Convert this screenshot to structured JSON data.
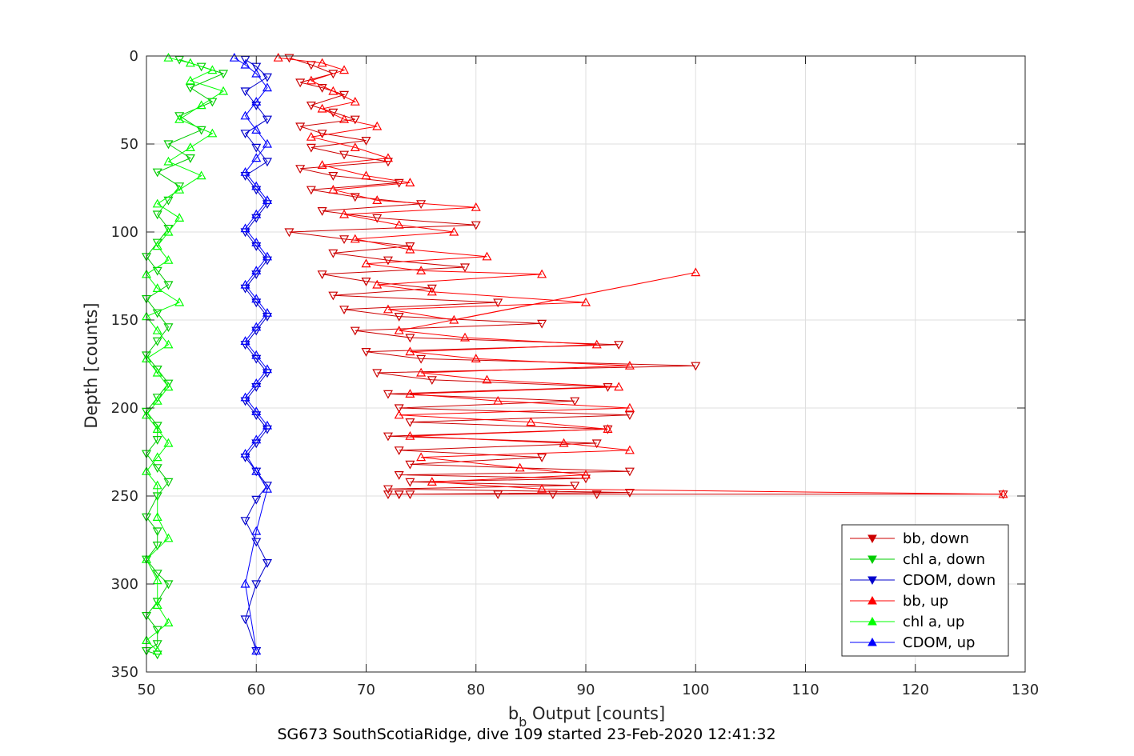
{
  "chart_data": {
    "type": "scatter",
    "title": "",
    "caption": "SG673 SouthScotiaRidge, dive 109 started 23-Feb-2020 12:41:32",
    "xlabel_main": "b",
    "xlabel_sub": "b",
    "xlabel_rest": " Output [counts]",
    "ylabel": "Depth [counts]",
    "xlim": [
      50,
      130
    ],
    "ylim": [
      0,
      350
    ],
    "y_reversed": true,
    "grid": true,
    "legend_position": "bottom-right",
    "xticks": [
      "50",
      "60",
      "70",
      "80",
      "90",
      "100",
      "110",
      "120",
      "130"
    ],
    "yticks": [
      "0",
      "50",
      "100",
      "150",
      "200",
      "250",
      "300",
      "350"
    ],
    "series": [
      {
        "name": "bb, down",
        "color": "#cc0000",
        "marker": "triangle-down",
        "connected": true,
        "x": [
          63,
          65,
          67,
          64,
          66,
          68,
          65,
          67,
          69,
          64,
          66,
          70,
          65,
          68,
          72,
          64,
          67,
          73,
          65,
          69,
          75,
          66,
          71,
          80,
          63,
          68,
          74,
          67,
          72,
          79,
          66,
          70,
          76,
          67,
          82,
          68,
          73,
          86,
          69,
          74,
          93,
          70,
          75,
          100,
          71,
          76,
          92,
          72,
          89,
          73,
          94,
          74,
          92,
          72,
          91,
          73,
          86,
          74,
          94,
          73,
          90,
          74,
          89,
          72,
          94,
          73,
          87,
          72,
          82,
          73,
          91,
          74,
          128
        ],
        "y": [
          1,
          5,
          10,
          15,
          18,
          22,
          28,
          32,
          36,
          40,
          44,
          48,
          52,
          56,
          60,
          64,
          68,
          72,
          76,
          80,
          84,
          88,
          92,
          96,
          100,
          104,
          108,
          112,
          116,
          120,
          124,
          128,
          132,
          136,
          140,
          144,
          148,
          152,
          156,
          160,
          164,
          168,
          172,
          176,
          180,
          184,
          188,
          192,
          196,
          200,
          204,
          208,
          212,
          216,
          220,
          224,
          228,
          232,
          236,
          238,
          240,
          242,
          244,
          246,
          248,
          249,
          249,
          249,
          249,
          249,
          249,
          249,
          249
        ]
      },
      {
        "name": "chl a, down",
        "color": "#00cc00",
        "marker": "triangle-down",
        "connected": true,
        "x": [
          53,
          55,
          57,
          54,
          56,
          53,
          55,
          52,
          54,
          51,
          53,
          52,
          51,
          52,
          51,
          50,
          51,
          52,
          50,
          51,
          52,
          51,
          50,
          51,
          52,
          51,
          50,
          51,
          51,
          50,
          51,
          52,
          51,
          50,
          51,
          51,
          50,
          51,
          52,
          51,
          50,
          51,
          51,
          50,
          51
        ],
        "y": [
          2,
          6,
          10,
          18,
          26,
          34,
          42,
          50,
          58,
          66,
          74,
          82,
          90,
          98,
          106,
          114,
          122,
          130,
          138,
          146,
          154,
          162,
          170,
          178,
          186,
          194,
          202,
          210,
          218,
          226,
          234,
          242,
          250,
          262,
          270,
          278,
          286,
          294,
          300,
          310,
          318,
          326,
          334,
          338,
          340
        ]
      },
      {
        "name": "CDOM, down",
        "color": "#0000cc",
        "marker": "triangle-down",
        "connected": true,
        "x": [
          59,
          60,
          61,
          59,
          60,
          61,
          59,
          60,
          61,
          59,
          60,
          61,
          60,
          59,
          60,
          61,
          60,
          59,
          60,
          61,
          60,
          59,
          60,
          61,
          60,
          59,
          60,
          61,
          60,
          59,
          60,
          61,
          60,
          59,
          60,
          61,
          60,
          59,
          60
        ],
        "y": [
          2,
          6,
          12,
          20,
          28,
          36,
          44,
          52,
          60,
          68,
          76,
          84,
          92,
          100,
          108,
          116,
          124,
          132,
          140,
          148,
          156,
          164,
          172,
          180,
          188,
          196,
          204,
          212,
          220,
          228,
          236,
          244,
          252,
          264,
          276,
          288,
          300,
          320,
          338
        ]
      },
      {
        "name": "bb, up",
        "color": "#ff0000",
        "marker": "triangle-up",
        "connected": true,
        "x": [
          62,
          66,
          68,
          65,
          67,
          69,
          66,
          68,
          71,
          65,
          69,
          72,
          66,
          70,
          74,
          67,
          71,
          80,
          68,
          73,
          78,
          69,
          74,
          81,
          70,
          75,
          86,
          71,
          76,
          90,
          72,
          78,
          100,
          73,
          79,
          91,
          74,
          80,
          94,
          75,
          81,
          93,
          74,
          82,
          94,
          73,
          85,
          92,
          74,
          88,
          94,
          75,
          84,
          90,
          76,
          86,
          128
        ],
        "y": [
          1,
          4,
          8,
          14,
          20,
          26,
          30,
          36,
          40,
          46,
          52,
          58,
          62,
          68,
          72,
          76,
          82,
          86,
          90,
          96,
          100,
          104,
          110,
          114,
          118,
          122,
          124,
          130,
          134,
          140,
          144,
          150,
          123,
          156,
          160,
          164,
          168,
          172,
          176,
          180,
          184,
          188,
          192,
          196,
          200,
          204,
          208,
          212,
          216,
          220,
          224,
          228,
          234,
          238,
          242,
          246,
          249
        ]
      },
      {
        "name": "chl a, up",
        "color": "#00ff00",
        "marker": "triangle-up",
        "connected": true,
        "x": [
          52,
          54,
          56,
          54,
          57,
          55,
          53,
          56,
          54,
          52,
          55,
          53,
          51,
          53,
          52,
          51,
          52,
          50,
          51,
          53,
          50,
          51,
          52,
          50,
          51,
          52,
          51,
          50,
          51,
          52,
          51,
          50,
          51,
          51,
          52,
          50,
          51,
          51,
          52,
          50,
          51
        ],
        "y": [
          1,
          4,
          8,
          14,
          20,
          28,
          36,
          44,
          52,
          60,
          68,
          76,
          84,
          92,
          100,
          108,
          116,
          124,
          132,
          140,
          148,
          156,
          164,
          172,
          180,
          188,
          196,
          204,
          212,
          220,
          228,
          236,
          244,
          262,
          274,
          286,
          298,
          312,
          322,
          332,
          338
        ]
      },
      {
        "name": "CDOM, up",
        "color": "#0000ff",
        "marker": "triangle-up",
        "connected": true,
        "x": [
          58,
          59,
          60,
          61,
          60,
          59,
          60,
          61,
          60,
          59,
          60,
          61,
          60,
          59,
          60,
          61,
          60,
          59,
          60,
          61,
          60,
          59,
          60,
          61,
          60,
          59,
          60,
          61,
          60,
          59,
          60,
          61,
          60,
          59,
          60
        ],
        "y": [
          1,
          5,
          10,
          18,
          26,
          34,
          42,
          50,
          58,
          66,
          74,
          82,
          90,
          98,
          106,
          114,
          122,
          130,
          138,
          146,
          154,
          162,
          170,
          178,
          186,
          194,
          202,
          210,
          218,
          226,
          236,
          246,
          270,
          300,
          338
        ]
      }
    ]
  }
}
